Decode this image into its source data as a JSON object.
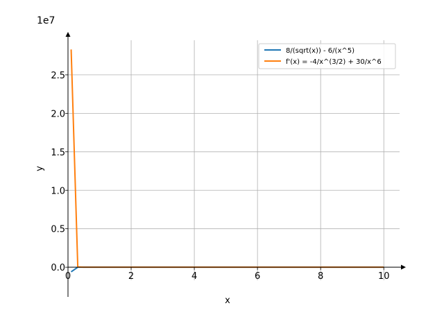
{
  "chart_data": {
    "type": "line",
    "title": "",
    "xlabel": "x",
    "ylabel": "y",
    "y_offset_label": "1e7",
    "y_multiplier": 10000000,
    "xlim": [
      0,
      10.5
    ],
    "ylim": [
      -0.17,
      2.95
    ],
    "grid": true,
    "legend_position": "top-right",
    "x_ticks": [
      {
        "value": 0,
        "label": "0"
      },
      {
        "value": 2,
        "label": "2"
      },
      {
        "value": 4,
        "label": "4"
      },
      {
        "value": 6,
        "label": "6"
      },
      {
        "value": 8,
        "label": "8"
      },
      {
        "value": 10,
        "label": "10"
      }
    ],
    "y_ticks": [
      {
        "value": 0,
        "label": "0.0"
      },
      {
        "value": 0.5,
        "label": "0.5"
      },
      {
        "value": 1.0,
        "label": "1.0"
      },
      {
        "value": 1.5,
        "label": "1.5"
      },
      {
        "value": 2.0,
        "label": "2.0"
      },
      {
        "value": 2.5,
        "label": "2.5"
      }
    ],
    "series": [
      {
        "name": "8/(sqrt(x)) - 6/(x^5)",
        "color": "#1f77b4",
        "x": [
          0.1,
          0.31,
          0.5,
          1,
          2,
          4,
          6,
          8,
          10
        ],
        "y": [
          -0.06,
          -0.0002,
          0,
          0,
          0,
          0,
          0,
          0,
          0
        ]
      },
      {
        "name": "f'(x) = -4/x^(3/2) + 30/x^6",
        "color": "#ff7f0e",
        "x": [
          0.1,
          0.31,
          0.5,
          1,
          2,
          4,
          6,
          8,
          10
        ],
        "y": [
          2.83,
          0.0033,
          0,
          0,
          0,
          0,
          0,
          0,
          0
        ]
      }
    ]
  }
}
